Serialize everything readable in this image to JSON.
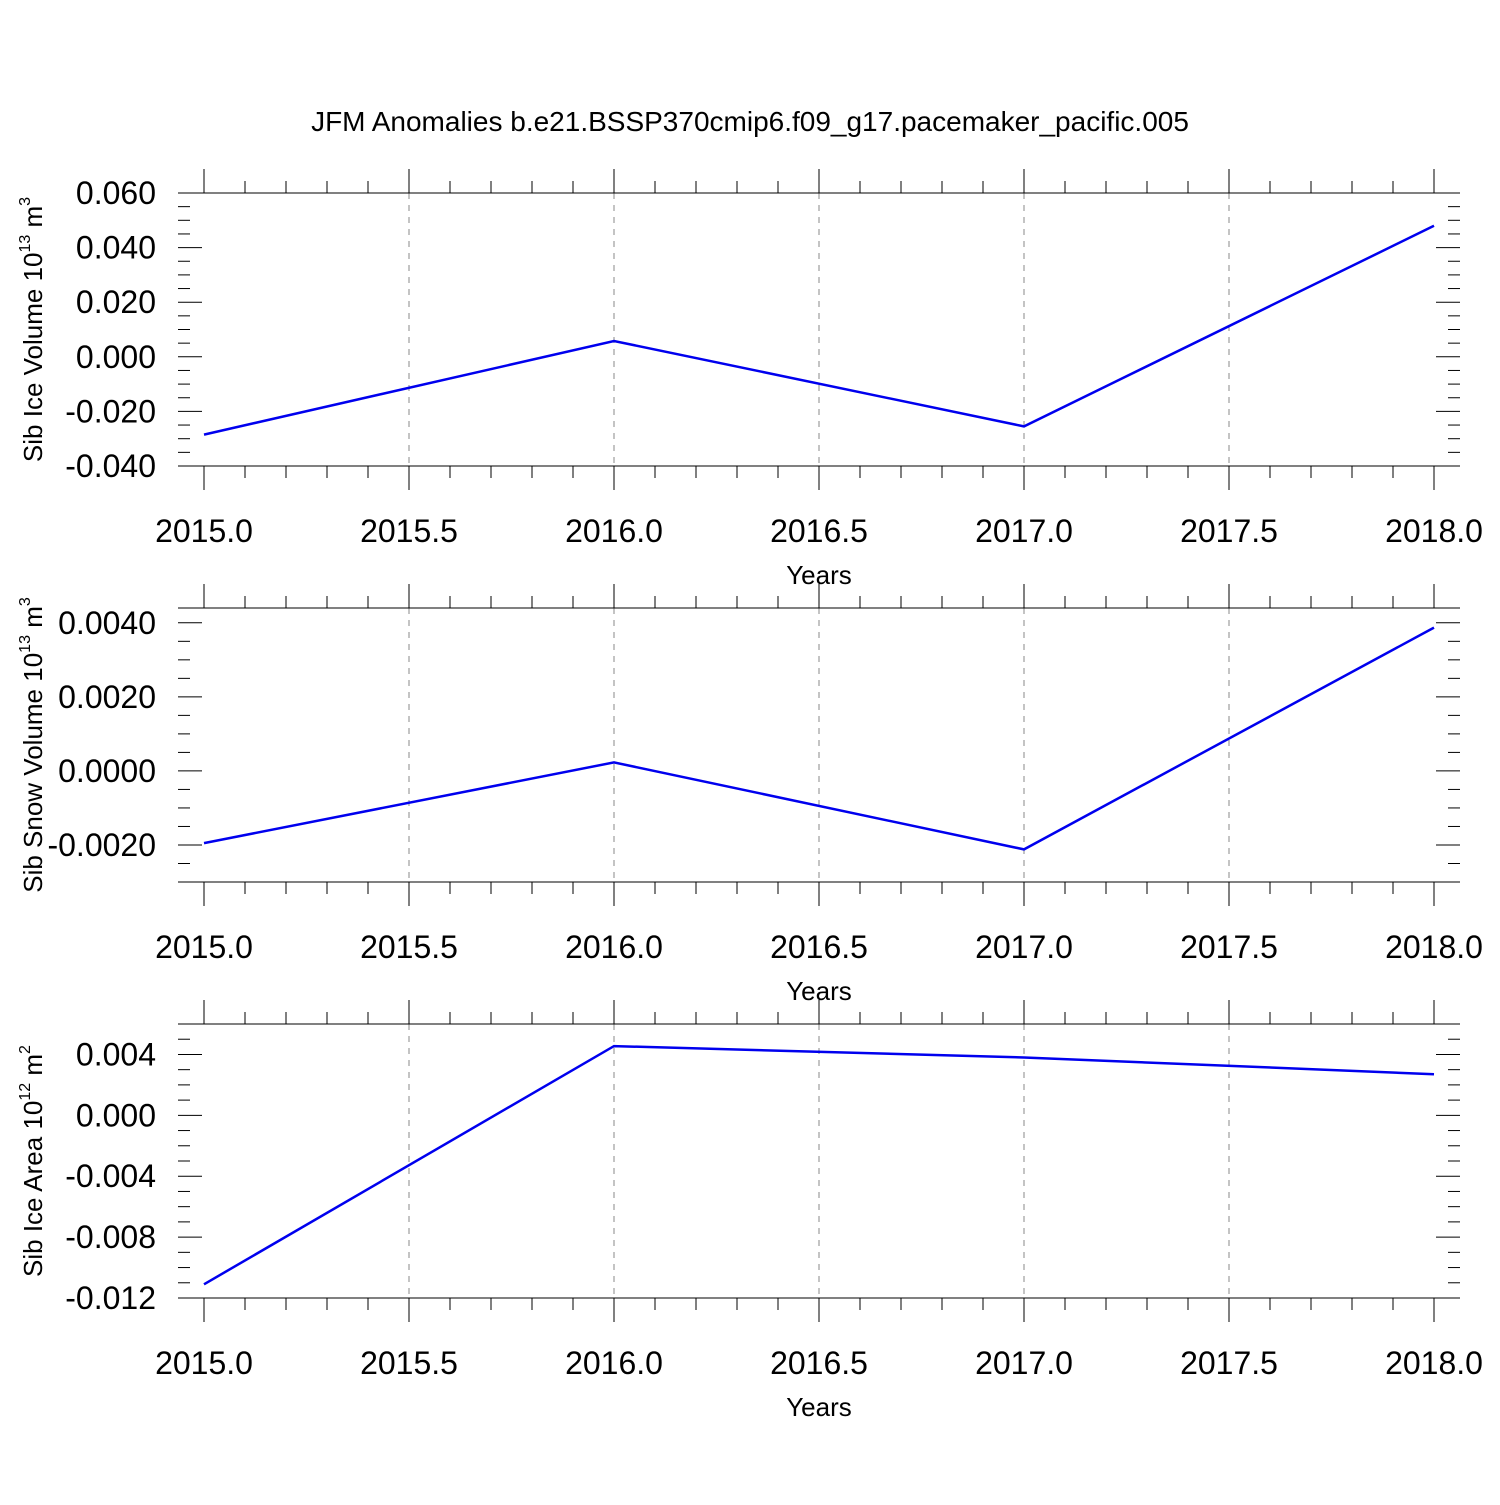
{
  "figure": {
    "title": "JFM Anomalies b.e21.BSSP370cmip6.f09_g17.pacemaker_pacific.005"
  },
  "chart_data": [
    {
      "type": "line",
      "xlabel": "Years",
      "ylabel": {
        "text": "Sib Ice Volume 10",
        "exp": "13",
        "unit": " m",
        "unit_exp": "3"
      },
      "x": [
        2015.0,
        2016.0,
        2017.0,
        2018.0
      ],
      "xlim": [
        2015.0,
        2018.0
      ],
      "xticks": [
        "2015.0",
        "2015.5",
        "2016.0",
        "2016.5",
        "2017.0",
        "2017.5",
        "2018.0"
      ],
      "ylim": [
        -0.04,
        0.06
      ],
      "yticks": [
        "0.060",
        "0.040",
        "0.020",
        "0.000",
        "-0.020",
        "-0.040"
      ],
      "ytick_values": [
        0.06,
        0.04,
        0.02,
        0.0,
        -0.02,
        -0.04
      ],
      "series": [
        {
          "values": [
            -0.0285,
            0.0058,
            -0.0255,
            0.048
          ],
          "color": "#0000ee"
        }
      ],
      "grid": "vertical-dashed"
    },
    {
      "type": "line",
      "xlabel": "Years",
      "ylabel": {
        "text": "Sib Snow Volume 10",
        "exp": "13",
        "unit": " m",
        "unit_exp": "3"
      },
      "x": [
        2015.0,
        2016.0,
        2017.0,
        2018.0
      ],
      "xlim": [
        2015.0,
        2018.0
      ],
      "xticks": [
        "2015.0",
        "2015.5",
        "2016.0",
        "2016.5",
        "2017.0",
        "2017.5",
        "2018.0"
      ],
      "ylim": [
        -0.003,
        0.0044
      ],
      "yticks": [
        "0.0040",
        "0.0020",
        "0.0000",
        "-0.0020"
      ],
      "ytick_values": [
        0.004,
        0.002,
        0.0,
        -0.002
      ],
      "series": [
        {
          "values": [
            -0.00195,
            0.00023,
            -0.00212,
            0.00387
          ],
          "color": "#0000ee"
        }
      ],
      "grid": "vertical-dashed"
    },
    {
      "type": "line",
      "xlabel": "Years",
      "ylabel": {
        "text": "Sib Ice Area 10",
        "exp": "12",
        "unit": " m",
        "unit_exp": "2"
      },
      "x": [
        2015.0,
        2016.0,
        2017.0,
        2018.0
      ],
      "xlim": [
        2015.0,
        2018.0
      ],
      "xticks": [
        "2015.0",
        "2015.5",
        "2016.0",
        "2016.5",
        "2017.0",
        "2017.5",
        "2018.0"
      ],
      "ylim": [
        -0.012,
        0.006
      ],
      "yticks": [
        "0.004",
        "0.000",
        "-0.004",
        "-0.008",
        "-0.012"
      ],
      "ytick_values": [
        0.004,
        0.0,
        -0.004,
        -0.008,
        -0.012
      ],
      "series": [
        {
          "values": [
            -0.0111,
            0.00455,
            0.0038,
            0.0027
          ],
          "color": "#0000ee"
        }
      ],
      "grid": "vertical-dashed"
    }
  ]
}
